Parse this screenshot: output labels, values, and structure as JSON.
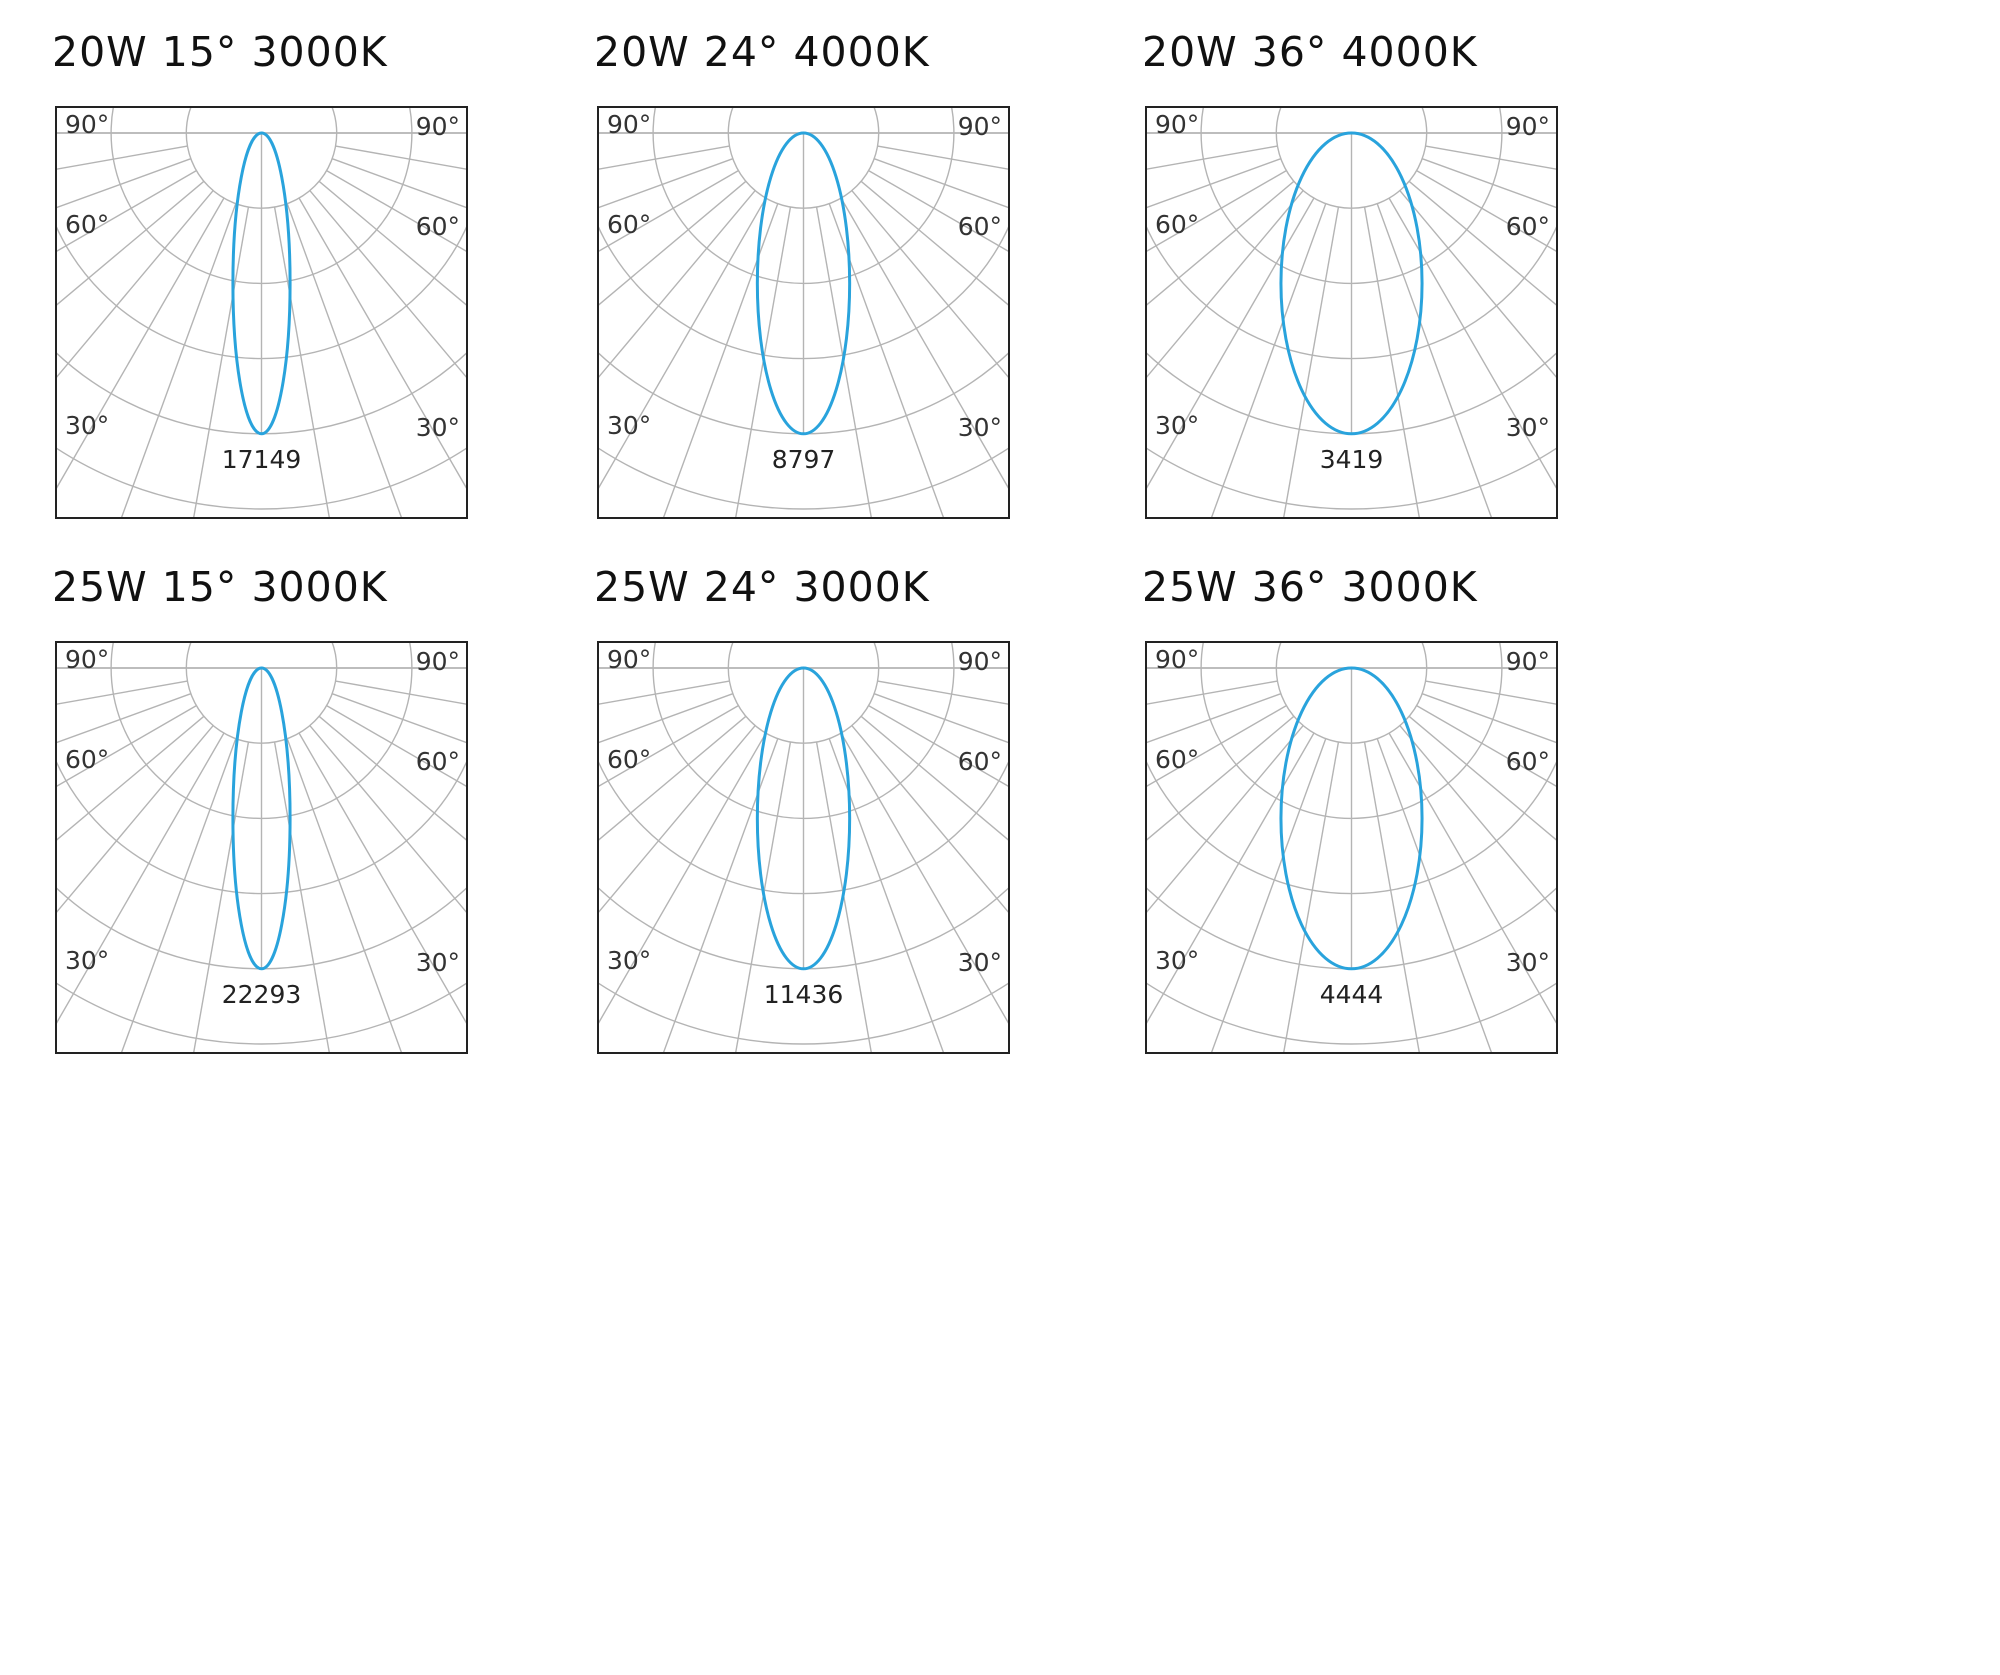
{
  "chart_data": [
    {
      "type": "polar",
      "title": "20W 15° 3000K",
      "peak_value": 17149,
      "beam_angle_deg": 15,
      "angle_labels": [
        "90°",
        "60°",
        "30°"
      ]
    },
    {
      "type": "polar",
      "title": "20W 24° 4000K",
      "peak_value": 8797,
      "beam_angle_deg": 24,
      "angle_labels": [
        "90°",
        "60°",
        "30°"
      ]
    },
    {
      "type": "polar",
      "title": "20W 36° 4000K",
      "peak_value": 3419,
      "beam_angle_deg": 36,
      "angle_labels": [
        "90°",
        "60°",
        "30°"
      ]
    },
    {
      "type": "polar",
      "title": "25W 15° 3000K",
      "peak_value": 22293,
      "beam_angle_deg": 15,
      "angle_labels": [
        "90°",
        "60°",
        "30°"
      ]
    },
    {
      "type": "polar",
      "title": "25W 24° 3000K",
      "peak_value": 11436,
      "beam_angle_deg": 24,
      "angle_labels": [
        "90°",
        "60°",
        "30°"
      ]
    },
    {
      "type": "polar",
      "title": "25W 36° 3000K",
      "peak_value": 4444,
      "beam_angle_deg": 36,
      "angle_labels": [
        "90°",
        "60°",
        "30°"
      ]
    }
  ],
  "colors": {
    "curve": "#29a3dc",
    "grid": "#b4b4b4",
    "frame": "#222222",
    "text": "#111111"
  }
}
